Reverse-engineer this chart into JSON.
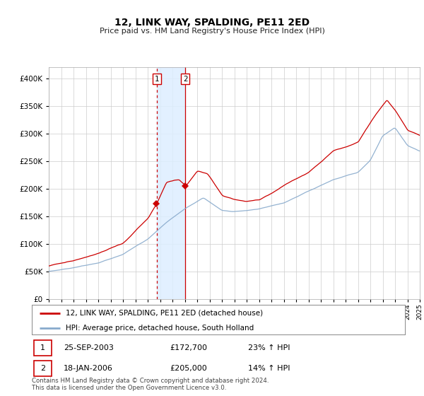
{
  "title": "12, LINK WAY, SPALDING, PE11 2ED",
  "subtitle": "Price paid vs. HM Land Registry's House Price Index (HPI)",
  "legend_line1": "12, LINK WAY, SPALDING, PE11 2ED (detached house)",
  "legend_line2": "HPI: Average price, detached house, South Holland",
  "footer": "Contains HM Land Registry data © Crown copyright and database right 2024.\nThis data is licensed under the Open Government Licence v3.0.",
  "table_rows": [
    {
      "num": "1",
      "date": "25-SEP-2003",
      "price": "£172,700",
      "hpi": "23% ↑ HPI"
    },
    {
      "num": "2",
      "date": "18-JAN-2006",
      "price": "£205,000",
      "hpi": "14% ↑ HPI"
    }
  ],
  "marker1_year": 2003.73,
  "marker1_value": 172700,
  "marker2_year": 2006.05,
  "marker2_value": 205000,
  "vline1_year": 2003.73,
  "vline2_year": 2006.05,
  "red_color": "#cc0000",
  "blue_color": "#88aacc",
  "vline_color": "#cc0000",
  "shade_color": "#ddeeff",
  "ylim_max": 420000,
  "ylabel_ticks": [
    0,
    50000,
    100000,
    150000,
    200000,
    250000,
    300000,
    350000,
    400000
  ],
  "ylabel_labels": [
    "£0",
    "£50K",
    "£100K",
    "£150K",
    "£200K",
    "£250K",
    "£300K",
    "£350K",
    "£400K"
  ]
}
